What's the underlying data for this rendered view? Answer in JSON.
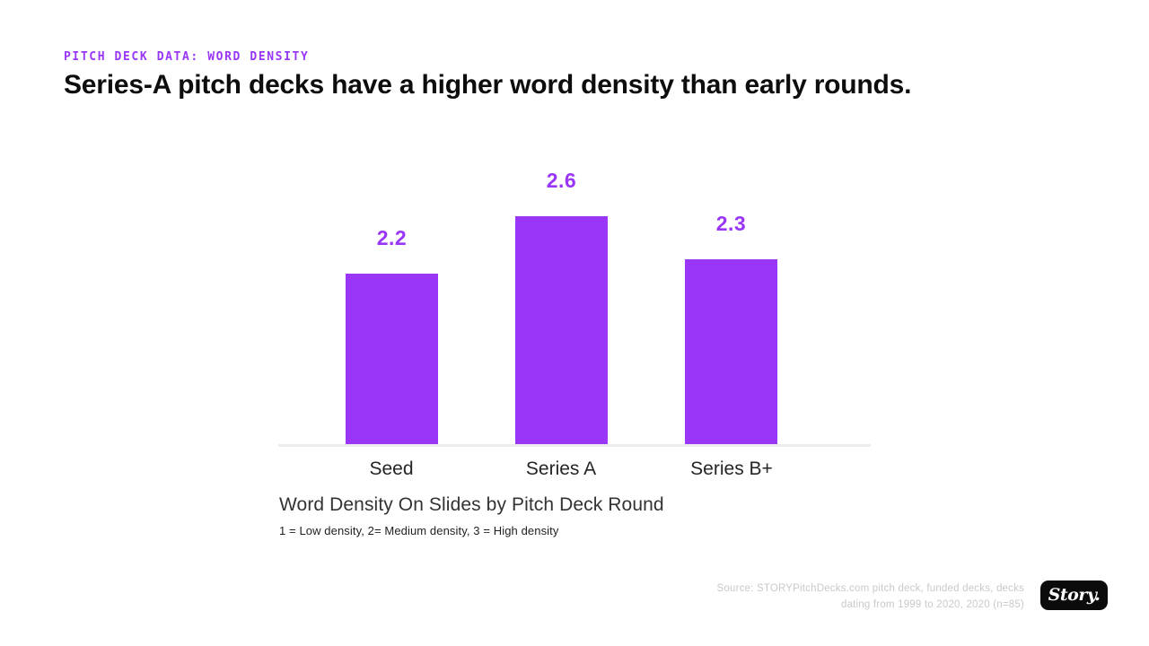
{
  "colors": {
    "accent": "#9936F7",
    "axis_line": "#ececec",
    "title_text": "#0d0d0d",
    "source_text": "#c9c9c9",
    "logo_bg": "#0b0b0b"
  },
  "header": {
    "eyebrow": "PITCH DECK DATA: WORD DENSITY",
    "title": "Series-A pitch decks have a higher word density than early rounds."
  },
  "chart_data": {
    "type": "bar",
    "categories": [
      "Seed",
      "Series A",
      "Series B+"
    ],
    "values": [
      2.2,
      2.6,
      2.3
    ],
    "title": "Word Density On Slides by Pitch Deck Round",
    "xlabel": "",
    "ylabel": "",
    "ylim": [
      1,
      3
    ],
    "grid": false,
    "legend": "none",
    "value_labels_shown": true,
    "bar_color": "#9936F7",
    "caption": "Word Density On Slides by Pitch Deck Round",
    "note": "1 = Low density, 2= Medium density, 3 = High density"
  },
  "footer": {
    "source_line1": "Source: STORYPitchDecks.com pitch deck, funded decks, decks",
    "source_line2": "dating from 1999 to 2020, 2020 (n=85)",
    "logo_text": "Story."
  }
}
